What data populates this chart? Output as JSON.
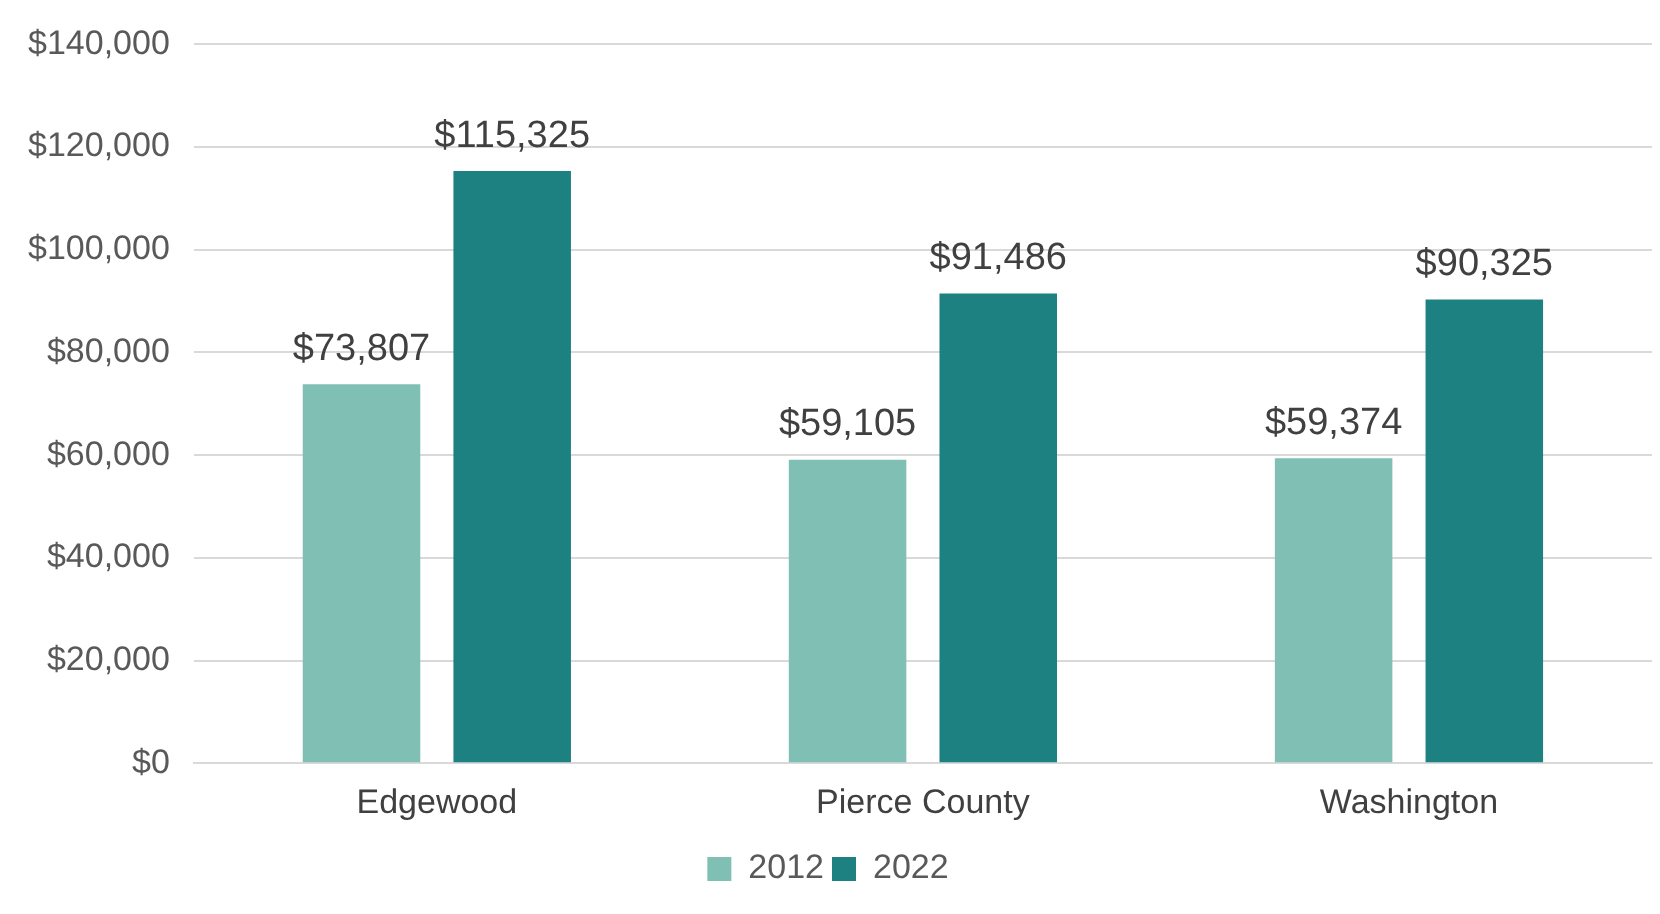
{
  "chart_data": {
    "type": "bar",
    "categories": [
      "Edgewood",
      "Pierce County",
      "Washington"
    ],
    "series": [
      {
        "name": "2012",
        "color": "#80bfb4",
        "values": [
          73807,
          59105,
          59374
        ],
        "value_labels": [
          "$73,807",
          "$59,105",
          "$59,374"
        ]
      },
      {
        "name": "2022",
        "color": "#1e8181",
        "values": [
          115325,
          91486,
          90325
        ],
        "value_labels": [
          "$115,325",
          "$91,486",
          "$90,325"
        ]
      }
    ],
    "ylim": [
      0,
      140000
    ],
    "yticks": [
      {
        "value": 0,
        "label": "$0"
      },
      {
        "value": 20000,
        "label": "$20,000"
      },
      {
        "value": 40000,
        "label": "$40,000"
      },
      {
        "value": 60000,
        "label": "$60,000"
      },
      {
        "value": 80000,
        "label": "$80,000"
      },
      {
        "value": 100000,
        "label": "$100,000"
      },
      {
        "value": 120000,
        "label": "$120,000"
      },
      {
        "value": 140000,
        "label": "$140,000"
      }
    ],
    "grid": "y",
    "legend": "bottom"
  }
}
